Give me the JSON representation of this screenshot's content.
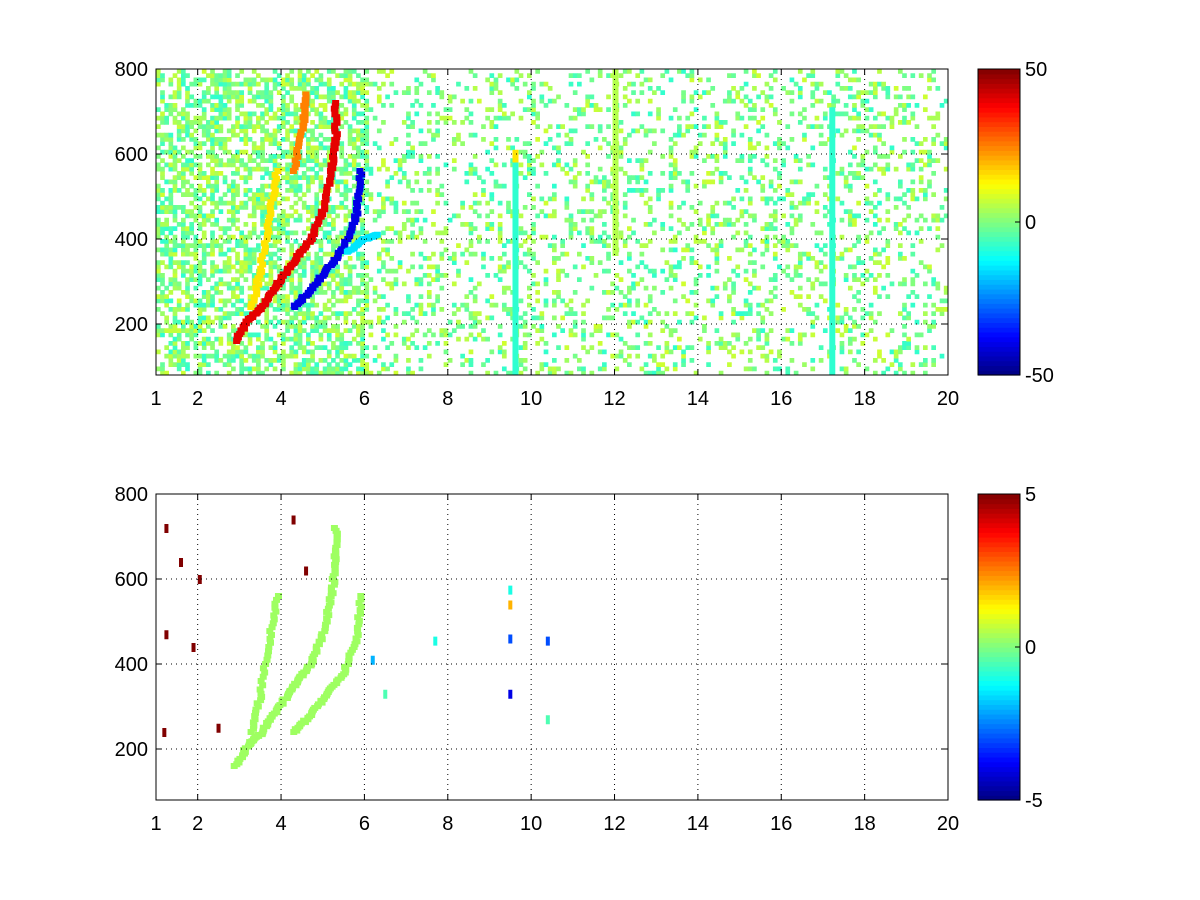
{
  "figure": {
    "background": "#ffffff"
  },
  "chart_data": [
    {
      "type": "heatmap",
      "title": "",
      "xlabel": "",
      "ylabel": "",
      "xlim": [
        1,
        20
      ],
      "ylim": [
        80,
        800
      ],
      "xticks": [
        "1",
        "2",
        "4",
        "6",
        "8",
        "10",
        "12",
        "14",
        "16",
        "18",
        "20"
      ],
      "xtick_values": [
        1,
        2,
        4,
        6,
        8,
        10,
        12,
        14,
        16,
        18,
        20
      ],
      "yticks": [
        "200",
        "400",
        "600",
        "800"
      ],
      "ytick_values": [
        200,
        400,
        600,
        800
      ],
      "grid": true,
      "colormap": "jet",
      "colorbar": {
        "range": [
          -50,
          50
        ],
        "ticks": [
          "50",
          "0",
          "-50"
        ],
        "tick_values": [
          50,
          0,
          -50
        ]
      },
      "traces": [
        {
          "value": 40,
          "points": [
            [
              2.9,
              160
            ],
            [
              3.2,
              210
            ],
            [
              3.5,
              235
            ],
            [
              3.8,
              280
            ],
            [
              4.1,
              320
            ],
            [
              4.4,
              360
            ],
            [
              4.7,
              400
            ],
            [
              5.0,
              470
            ],
            [
              5.2,
              560
            ],
            [
              5.3,
              640
            ],
            [
              5.3,
              720
            ]
          ]
        },
        {
          "value": 15,
          "points": [
            [
              3.3,
              240
            ],
            [
              3.5,
              330
            ],
            [
              3.7,
              450
            ],
            [
              3.9,
              560
            ]
          ]
        },
        {
          "value": 25,
          "points": [
            [
              4.3,
              560
            ],
            [
              4.5,
              660
            ],
            [
              4.6,
              740
            ]
          ]
        },
        {
          "value": -40,
          "points": [
            [
              4.3,
              240
            ],
            [
              4.7,
              280
            ],
            [
              5.1,
              330
            ],
            [
              5.5,
              380
            ],
            [
              5.8,
              460
            ],
            [
              5.9,
              560
            ]
          ]
        },
        {
          "value": -15,
          "points": [
            [
              5.6,
              370
            ],
            [
              6.0,
              400
            ],
            [
              6.3,
              410
            ]
          ]
        }
      ],
      "stripes": [
        {
          "x": 9.6,
          "y_from": 80,
          "y_to": 580,
          "value": -8
        },
        {
          "x": 9.6,
          "y_from": 580,
          "y_to": 610,
          "value": 15
        },
        {
          "x": 12.0,
          "y_from": 360,
          "y_to": 800,
          "value": 5
        },
        {
          "x": 17.2,
          "y_from": 80,
          "y_to": 710,
          "value": -8
        }
      ],
      "scatter": {
        "value_range": [
          -8,
          8
        ],
        "density_low_x": 0.6,
        "density_high_x": 0.3
      }
    },
    {
      "type": "heatmap",
      "title": "",
      "xlabel": "",
      "ylabel": "",
      "xlim": [
        1,
        20
      ],
      "ylim": [
        80,
        800
      ],
      "xticks": [
        "1",
        "2",
        "4",
        "6",
        "8",
        "10",
        "12",
        "14",
        "16",
        "18",
        "20"
      ],
      "xtick_values": [
        1,
        2,
        4,
        6,
        8,
        10,
        12,
        14,
        16,
        18,
        20
      ],
      "yticks": [
        "200",
        "400",
        "600",
        "800"
      ],
      "ytick_values": [
        200,
        400,
        600,
        800
      ],
      "grid": true,
      "colormap": "jet",
      "colorbar": {
        "range": [
          -5,
          5
        ],
        "ticks": [
          "5",
          "0",
          "-5"
        ],
        "tick_values": [
          5,
          0,
          -5
        ]
      },
      "traces": [
        {
          "value": 0.3,
          "points": [
            [
              2.9,
              160
            ],
            [
              3.2,
              210
            ],
            [
              3.5,
              235
            ],
            [
              3.8,
              280
            ],
            [
              4.1,
              320
            ],
            [
              4.4,
              360
            ],
            [
              4.7,
              400
            ],
            [
              5.0,
              470
            ],
            [
              5.2,
              560
            ],
            [
              5.3,
              640
            ],
            [
              5.3,
              720
            ]
          ]
        },
        {
          "value": 0.3,
          "points": [
            [
              3.3,
              240
            ],
            [
              3.5,
              330
            ],
            [
              3.7,
              450
            ],
            [
              3.9,
              560
            ]
          ]
        },
        {
          "value": 0.3,
          "points": [
            [
              4.3,
              240
            ],
            [
              4.7,
              280
            ],
            [
              5.1,
              330
            ],
            [
              5.5,
              380
            ],
            [
              5.8,
              460
            ],
            [
              5.9,
              560
            ]
          ]
        }
      ],
      "spots": [
        {
          "x": 1.25,
          "y": 720,
          "value": 5
        },
        {
          "x": 1.25,
          "y": 470,
          "value": 5
        },
        {
          "x": 1.2,
          "y": 240,
          "value": 5
        },
        {
          "x": 1.6,
          "y": 640,
          "value": 5
        },
        {
          "x": 2.05,
          "y": 600,
          "value": 5
        },
        {
          "x": 1.9,
          "y": 440,
          "value": 5
        },
        {
          "x": 2.5,
          "y": 250,
          "value": 5
        },
        {
          "x": 4.6,
          "y": 620,
          "value": 5
        },
        {
          "x": 4.3,
          "y": 740,
          "value": 5
        },
        {
          "x": 9.5,
          "y": 540,
          "value": 2
        },
        {
          "x": 9.5,
          "y": 575,
          "value": -1
        },
        {
          "x": 9.5,
          "y": 460,
          "value": -3
        },
        {
          "x": 9.5,
          "y": 330,
          "value": -4
        },
        {
          "x": 10.4,
          "y": 455,
          "value": -3
        },
        {
          "x": 10.4,
          "y": 270,
          "value": -0.5
        },
        {
          "x": 7.7,
          "y": 455,
          "value": -1
        },
        {
          "x": 6.2,
          "y": 410,
          "value": -2
        },
        {
          "x": 6.5,
          "y": 330,
          "value": -0.5
        }
      ]
    }
  ]
}
